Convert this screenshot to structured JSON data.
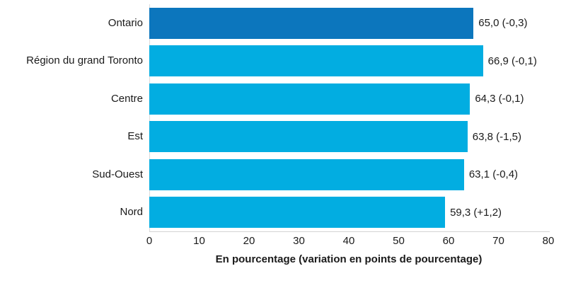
{
  "chart_data": {
    "type": "bar",
    "orientation": "horizontal",
    "title": "",
    "xlabel": "En pourcentage (variation en points de pourcentage)",
    "ylabel": "",
    "categories": [
      "Ontario",
      "Région du grand Toronto",
      "Centre",
      "Est",
      "Sud-Ouest",
      "Nord"
    ],
    "values": [
      65.0,
      66.9,
      64.3,
      63.8,
      63.1,
      59.3
    ],
    "deltas": [
      -0.3,
      -0.1,
      -0.1,
      -1.5,
      -0.4,
      1.2
    ],
    "value_labels": [
      "65,0 (-0,3)",
      "66,9 (-0,1)",
      "64,3 (-0,1)",
      "63,8 (-1,5)",
      "63,1 (-0,4)",
      "59,3 (+1,2)"
    ],
    "xlim": [
      0,
      80
    ],
    "xticks": [
      0,
      10,
      20,
      30,
      40,
      50,
      60,
      70,
      80
    ],
    "grid": false,
    "legend": "none",
    "highlight_index": 0,
    "colors": {
      "highlight_bar": "#0c76bd",
      "default_bar": "#02ade1",
      "axis_line": "#d4d4d4",
      "zero_gridline": "#dcdcdc",
      "text": "#1a1a1a"
    }
  }
}
